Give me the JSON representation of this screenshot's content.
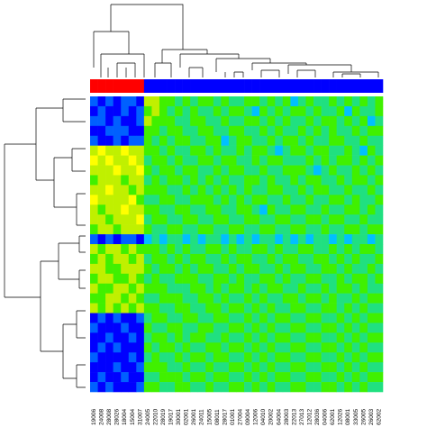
{
  "chart_data": {
    "type": "heatmap",
    "categories": [
      "19006",
      "24008",
      "28008",
      "28026",
      "18004",
      "15004",
      "31007",
      "24005",
      "22010",
      "28019",
      "19017",
      "30001",
      "02001",
      "26001",
      "24011",
      "15005",
      "08011",
      "28017",
      "01001",
      "27004",
      "09004",
      "12006",
      "04010",
      "20002",
      "64004",
      "28003",
      "22013",
      "27013",
      "12012",
      "28036",
      "04006",
      "62001",
      "12026",
      "08001",
      "33005",
      "26005",
      "26003",
      "62002"
    ],
    "column_group_colors": [
      "#ff0000",
      "#ff0000",
      "#ff0000",
      "#ff0000",
      "#ff0000",
      "#ff0000",
      "#ff0000",
      "#0000ff",
      "#0000ff",
      "#0000ff",
      "#0000ff",
      "#0000ff",
      "#0000ff",
      "#0000ff",
      "#0000ff",
      "#0000ff",
      "#0000ff",
      "#0000ff",
      "#0000ff",
      "#0000ff",
      "#0000ff",
      "#0000ff",
      "#0000ff",
      "#0000ff",
      "#0000ff",
      "#0000ff",
      "#0000ff",
      "#0000ff",
      "#0000ff",
      "#0000ff",
      "#0000ff",
      "#0000ff",
      "#0000ff",
      "#0000ff",
      "#0000ff",
      "#0000ff",
      "#0000ff",
      "#0000ff"
    ],
    "color_scale": [
      "#00008b",
      "#0000ff",
      "#0060ff",
      "#00c0ff",
      "#20e080",
      "#40f000",
      "#c0f000",
      "#ffff00",
      "#ff8000"
    ],
    "vlim": [
      0,
      8
    ],
    "values": [
      [
        2,
        1,
        2,
        1,
        2,
        2,
        1,
        6,
        6,
        5,
        5,
        4,
        5,
        4,
        5,
        5,
        4,
        5,
        4,
        4,
        5,
        5,
        4,
        5,
        4,
        5,
        3,
        4,
        5,
        4,
        4,
        5,
        4,
        5,
        4,
        5,
        4,
        5
      ],
      [
        1,
        2,
        1,
        1,
        2,
        1,
        2,
        5,
        6,
        5,
        4,
        5,
        4,
        5,
        4,
        4,
        5,
        4,
        5,
        5,
        4,
        3,
        5,
        4,
        5,
        4,
        5,
        5,
        4,
        5,
        4,
        4,
        5,
        3,
        5,
        4,
        4,
        5
      ],
      [
        2,
        2,
        1,
        2,
        1,
        1,
        2,
        6,
        5,
        5,
        5,
        4,
        4,
        5,
        5,
        4,
        4,
        5,
        4,
        4,
        5,
        5,
        4,
        5,
        4,
        5,
        4,
        4,
        5,
        4,
        5,
        5,
        4,
        5,
        4,
        5,
        3,
        4
      ],
      [
        1,
        1,
        2,
        2,
        2,
        1,
        1,
        5,
        5,
        4,
        5,
        5,
        4,
        4,
        5,
        5,
        4,
        4,
        5,
        5,
        4,
        4,
        5,
        4,
        5,
        4,
        4,
        5,
        4,
        5,
        4,
        5,
        4,
        4,
        5,
        4,
        5,
        5
      ],
      [
        2,
        1,
        1,
        2,
        1,
        2,
        2,
        5,
        4,
        5,
        4,
        5,
        5,
        4,
        4,
        5,
        5,
        3,
        4,
        5,
        5,
        4,
        4,
        5,
        4,
        5,
        5,
        4,
        5,
        4,
        4,
        5,
        5,
        4,
        4,
        5,
        4,
        4
      ],
      [
        6,
        7,
        6,
        6,
        7,
        6,
        6,
        5,
        5,
        4,
        5,
        4,
        4,
        5,
        5,
        4,
        5,
        4,
        4,
        5,
        4,
        5,
        5,
        4,
        3,
        4,
        5,
        5,
        4,
        5,
        5,
        4,
        4,
        5,
        4,
        3,
        5,
        4
      ],
      [
        7,
        6,
        7,
        6,
        6,
        7,
        6,
        4,
        5,
        5,
        4,
        5,
        4,
        4,
        5,
        5,
        4,
        5,
        5,
        4,
        4,
        5,
        4,
        5,
        5,
        4,
        4,
        4,
        5,
        4,
        5,
        4,
        5,
        5,
        4,
        5,
        4,
        5
      ],
      [
        6,
        6,
        6,
        7,
        6,
        6,
        7,
        5,
        4,
        5,
        5,
        4,
        5,
        5,
        4,
        4,
        5,
        4,
        5,
        5,
        4,
        4,
        5,
        4,
        4,
        5,
        5,
        5,
        4,
        3,
        4,
        5,
        4,
        4,
        5,
        4,
        5,
        4
      ],
      [
        5,
        6,
        6,
        6,
        5,
        6,
        6,
        4,
        5,
        4,
        5,
        5,
        4,
        5,
        4,
        5,
        4,
        5,
        4,
        4,
        5,
        5,
        4,
        5,
        4,
        4,
        5,
        4,
        5,
        5,
        4,
        4,
        5,
        4,
        5,
        5,
        4,
        5
      ],
      [
        6,
        6,
        7,
        6,
        6,
        5,
        6,
        5,
        5,
        5,
        4,
        4,
        5,
        4,
        5,
        4,
        5,
        4,
        5,
        4,
        5,
        4,
        4,
        5,
        5,
        4,
        4,
        5,
        4,
        5,
        5,
        4,
        4,
        5,
        4,
        4,
        5,
        4
      ],
      [
        7,
        6,
        6,
        6,
        6,
        7,
        5,
        4,
        4,
        5,
        5,
        4,
        4,
        5,
        5,
        5,
        4,
        5,
        4,
        5,
        4,
        5,
        5,
        4,
        4,
        5,
        4,
        4,
        5,
        4,
        4,
        5,
        5,
        4,
        5,
        4,
        4,
        5
      ],
      [
        6,
        5,
        6,
        6,
        7,
        6,
        6,
        5,
        5,
        4,
        4,
        5,
        5,
        4,
        4,
        5,
        5,
        4,
        4,
        5,
        5,
        4,
        3,
        5,
        4,
        4,
        5,
        5,
        4,
        4,
        5,
        4,
        4,
        5,
        5,
        4,
        5,
        4
      ],
      [
        6,
        6,
        5,
        6,
        6,
        6,
        7,
        4,
        5,
        5,
        4,
        4,
        5,
        5,
        4,
        4,
        5,
        5,
        4,
        4,
        5,
        5,
        4,
        4,
        5,
        5,
        4,
        4,
        5,
        5,
        4,
        5,
        5,
        4,
        4,
        5,
        4,
        4
      ],
      [
        5,
        6,
        6,
        5,
        6,
        6,
        6,
        5,
        4,
        4,
        5,
        5,
        4,
        4,
        5,
        5,
        4,
        4,
        5,
        5,
        4,
        4,
        5,
        5,
        4,
        4,
        5,
        5,
        4,
        4,
        5,
        4,
        4,
        5,
        5,
        4,
        5,
        5
      ],
      [
        2,
        1,
        2,
        1,
        2,
        2,
        1,
        3,
        4,
        3,
        4,
        4,
        3,
        4,
        3,
        4,
        4,
        3,
        4,
        3,
        4,
        3,
        4,
        4,
        3,
        4,
        3,
        4,
        3,
        4,
        4,
        3,
        4,
        3,
        4,
        4,
        3,
        4
      ],
      [
        6,
        5,
        6,
        6,
        5,
        6,
        5,
        5,
        5,
        4,
        5,
        4,
        5,
        4,
        4,
        5,
        5,
        4,
        5,
        4,
        4,
        5,
        5,
        4,
        5,
        4,
        4,
        5,
        5,
        4,
        4,
        5,
        4,
        5,
        4,
        5,
        5,
        4
      ],
      [
        5,
        6,
        5,
        6,
        6,
        5,
        6,
        4,
        5,
        5,
        4,
        5,
        4,
        5,
        5,
        4,
        4,
        5,
        4,
        5,
        5,
        4,
        4,
        5,
        4,
        5,
        5,
        4,
        4,
        5,
        5,
        4,
        5,
        4,
        5,
        4,
        4,
        5
      ],
      [
        6,
        6,
        5,
        5,
        6,
        6,
        6,
        5,
        4,
        5,
        5,
        4,
        5,
        4,
        5,
        5,
        4,
        4,
        5,
        4,
        5,
        5,
        4,
        4,
        5,
        4,
        5,
        5,
        4,
        4,
        5,
        5,
        4,
        5,
        4,
        4,
        5,
        4
      ],
      [
        5,
        6,
        6,
        5,
        5,
        6,
        5,
        4,
        5,
        4,
        4,
        5,
        5,
        5,
        4,
        4,
        5,
        5,
        4,
        5,
        4,
        4,
        5,
        5,
        4,
        5,
        4,
        4,
        5,
        5,
        4,
        4,
        5,
        4,
        5,
        5,
        4,
        5
      ],
      [
        6,
        5,
        5,
        6,
        6,
        5,
        6,
        5,
        5,
        5,
        4,
        4,
        4,
        5,
        5,
        4,
        5,
        4,
        5,
        5,
        4,
        5,
        4,
        5,
        5,
        4,
        4,
        5,
        4,
        4,
        5,
        4,
        5,
        5,
        4,
        5,
        4,
        4
      ],
      [
        5,
        5,
        6,
        6,
        5,
        6,
        5,
        4,
        4,
        5,
        5,
        5,
        4,
        4,
        5,
        5,
        4,
        5,
        4,
        4,
        5,
        4,
        5,
        4,
        4,
        5,
        5,
        4,
        5,
        5,
        4,
        5,
        4,
        4,
        5,
        4,
        5,
        5
      ],
      [
        6,
        5,
        6,
        5,
        6,
        5,
        6,
        5,
        5,
        4,
        4,
        5,
        5,
        4,
        4,
        5,
        5,
        4,
        5,
        5,
        4,
        5,
        4,
        5,
        4,
        4,
        5,
        5,
        4,
        4,
        5,
        5,
        4,
        5,
        4,
        5,
        4,
        4
      ],
      [
        1,
        2,
        1,
        2,
        1,
        1,
        2,
        4,
        5,
        5,
        4,
        4,
        5,
        5,
        4,
        4,
        5,
        5,
        4,
        4,
        5,
        4,
        5,
        4,
        5,
        5,
        4,
        4,
        5,
        5,
        4,
        4,
        5,
        4,
        5,
        4,
        5,
        5
      ],
      [
        2,
        1,
        1,
        1,
        2,
        1,
        1,
        5,
        4,
        4,
        5,
        5,
        4,
        4,
        5,
        5,
        4,
        4,
        5,
        5,
        4,
        5,
        4,
        5,
        4,
        4,
        5,
        5,
        4,
        4,
        5,
        5,
        4,
        5,
        4,
        5,
        4,
        4
      ],
      [
        1,
        1,
        2,
        1,
        1,
        2,
        1,
        4,
        5,
        5,
        4,
        5,
        4,
        5,
        5,
        4,
        4,
        5,
        4,
        4,
        5,
        4,
        5,
        4,
        5,
        5,
        4,
        4,
        5,
        5,
        4,
        4,
        5,
        4,
        5,
        4,
        5,
        5
      ],
      [
        1,
        2,
        1,
        2,
        1,
        1,
        1,
        5,
        4,
        5,
        5,
        4,
        5,
        4,
        4,
        5,
        5,
        4,
        5,
        5,
        4,
        5,
        4,
        5,
        4,
        4,
        5,
        5,
        4,
        4,
        5,
        5,
        4,
        5,
        4,
        5,
        4,
        4
      ],
      [
        2,
        1,
        1,
        1,
        1,
        2,
        1,
        4,
        5,
        4,
        4,
        5,
        4,
        5,
        5,
        4,
        5,
        5,
        4,
        4,
        5,
        4,
        5,
        4,
        5,
        5,
        4,
        4,
        5,
        5,
        4,
        4,
        5,
        4,
        5,
        4,
        5,
        5
      ],
      [
        1,
        1,
        1,
        2,
        1,
        1,
        2,
        5,
        5,
        5,
        4,
        4,
        5,
        4,
        4,
        5,
        4,
        4,
        5,
        5,
        4,
        5,
        4,
        5,
        4,
        4,
        5,
        5,
        4,
        4,
        5,
        5,
        4,
        5,
        4,
        5,
        4,
        4
      ],
      [
        1,
        2,
        1,
        1,
        2,
        1,
        1,
        4,
        4,
        5,
        5,
        5,
        4,
        5,
        5,
        4,
        5,
        5,
        4,
        4,
        5,
        4,
        5,
        4,
        5,
        5,
        4,
        4,
        5,
        5,
        4,
        4,
        5,
        4,
        5,
        4,
        5,
        5
      ],
      [
        2,
        1,
        2,
        1,
        1,
        1,
        2,
        5,
        5,
        4,
        4,
        5,
        5,
        4,
        4,
        5,
        4,
        4,
        5,
        5,
        4,
        5,
        4,
        5,
        4,
        4,
        5,
        5,
        4,
        4,
        5,
        5,
        4,
        5,
        4,
        5,
        4,
        4
      ]
    ]
  }
}
